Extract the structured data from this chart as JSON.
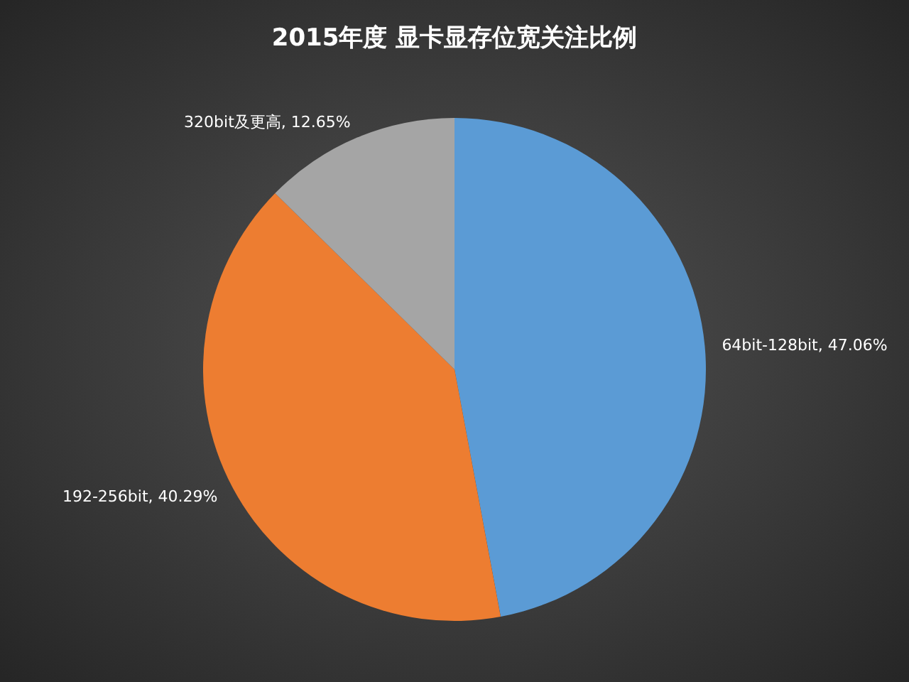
{
  "chart_data": {
    "type": "pie",
    "title": "2015年度  显卡显存位宽关注比例",
    "categories": [
      "64bit-128bit",
      "192-256bit",
      "320bit及更高"
    ],
    "values": [
      47.06,
      40.29,
      12.65
    ],
    "value_labels": [
      "47.06%",
      "40.29%",
      "12.65%"
    ],
    "colors": [
      "#5b9bd5",
      "#ed7d31",
      "#a5a5a5"
    ]
  }
}
